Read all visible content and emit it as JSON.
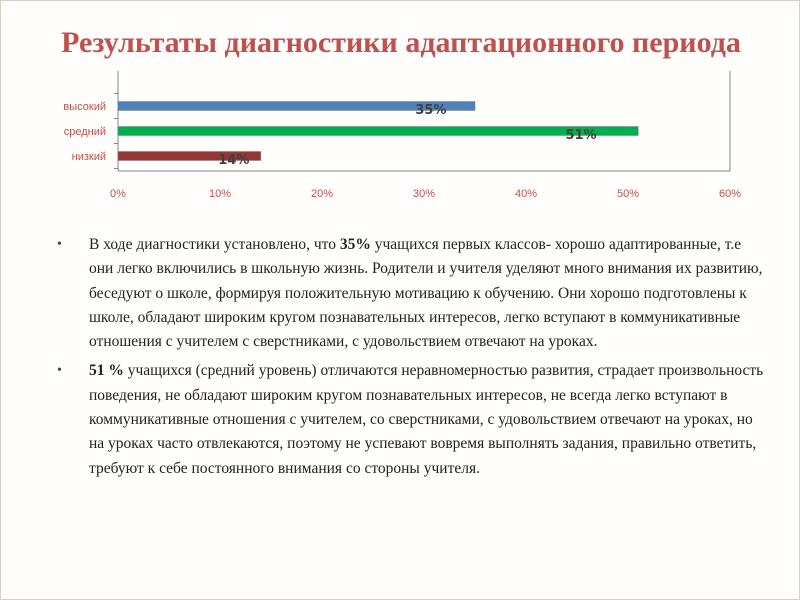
{
  "slide": {
    "title": "Результаты диагностики адаптационного периода"
  },
  "chart_data": {
    "type": "bar",
    "orientation": "horizontal",
    "categories": [
      "высокий",
      "средний",
      "низкий"
    ],
    "values": [
      35,
      51,
      14
    ],
    "data_labels": [
      "35%",
      "51%",
      "14%"
    ],
    "colors": [
      "#4f81bd",
      "#00b050",
      "#953735"
    ],
    "xlim": [
      0,
      60
    ],
    "x_ticks": [
      "0%",
      "10%",
      "20%",
      "30%",
      "40%",
      "50%",
      "60%"
    ],
    "x_tick_values": [
      0,
      10,
      20,
      30,
      40,
      50,
      60
    ],
    "grid": false,
    "legend": "none"
  },
  "bullets": [
    {
      "lead": "В ходе диагностики установлено, что ",
      "bold": "35%",
      "rest": " учащихся  первых классов- хорошо адаптированные, т.е  они легко включились в школьную жизнь.  Родители и учителя  уделяют много внимания их развитию, беседуют о школе, формируя положительную мотивацию к обучению. Они хорошо подготовлены к школе, обладают широким кругом познавательных интересов,  легко вступают в коммуникативные отношения с учителем с сверстниками, с удовольствием отвечают на уроках."
    },
    {
      "lead": "",
      "bold": "51 %",
      "rest": " учащихся (средний уровень) отличаются неравномерностью развития, страдает произвольность поведения, не обладают широким кругом познавательных интересов, не всегда легко вступают в коммуникативные отношения с учителем, со сверстниками, с удовольствием отвечают на уроках, но на  уроках часто отвлекаются, поэтому не успевают вовремя выполнять задания, правильно ответить, требуют к себе постоянного внимания со стороны учителя."
    }
  ],
  "bullet_symbol": "•"
}
